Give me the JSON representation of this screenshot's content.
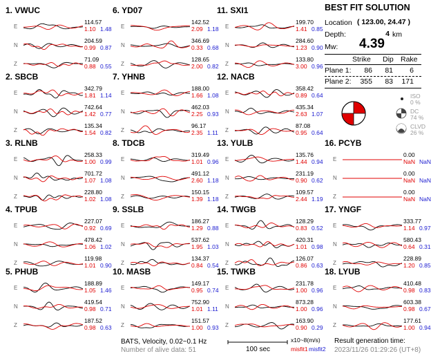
{
  "stations": [
    {
      "label": "1. VWUC",
      "traces": [
        {
          "comp": "E",
          "amp": "114.57",
          "misfit1": "1.10",
          "misfit2": "1.48"
        },
        {
          "comp": "N",
          "amp": "204.59",
          "misfit1": "0.99",
          "misfit2": "0.87"
        },
        {
          "comp": "Z",
          "amp": "71.09",
          "misfit1": "0.88",
          "misfit2": "0.55"
        }
      ]
    },
    {
      "label": "2. SBCB",
      "traces": [
        {
          "comp": "E",
          "amp": "342.79",
          "misfit1": "1.81",
          "misfit2": "1.14"
        },
        {
          "comp": "N",
          "amp": "742.64",
          "misfit1": "1.42",
          "misfit2": "0.77"
        },
        {
          "comp": "Z",
          "amp": "135.34",
          "misfit1": "1.54",
          "misfit2": "0.82"
        }
      ]
    },
    {
      "label": "3. RLNB",
      "traces": [
        {
          "comp": "E",
          "amp": "258.33",
          "misfit1": "1.00",
          "misfit2": "0.99"
        },
        {
          "comp": "N",
          "amp": "701.72",
          "misfit1": "1.07",
          "misfit2": "1.08"
        },
        {
          "comp": "Z",
          "amp": "228.80",
          "misfit1": "1.02",
          "misfit2": "1.08"
        }
      ]
    },
    {
      "label": "4. TPUB",
      "traces": [
        {
          "comp": "E",
          "amp": "227.07",
          "misfit1": "0.92",
          "misfit2": "0.69"
        },
        {
          "comp": "N",
          "amp": "478.42",
          "misfit1": "1.06",
          "misfit2": "1.02"
        },
        {
          "comp": "Z",
          "amp": "119.98",
          "misfit1": "1.01",
          "misfit2": "0.90"
        }
      ]
    },
    {
      "label": "5. PHUB",
      "traces": [
        {
          "comp": "E",
          "amp": "188.89",
          "misfit1": "1.05",
          "misfit2": "1.46"
        },
        {
          "comp": "N",
          "amp": "419.54",
          "misfit1": "0.98",
          "misfit2": "0.71"
        },
        {
          "comp": "Z",
          "amp": "187.52",
          "misfit1": "0.98",
          "misfit2": "0.63"
        }
      ]
    },
    {
      "label": "6. YD07",
      "traces": [
        {
          "comp": "E",
          "amp": "142.52",
          "misfit1": "2.09",
          "misfit2": "1.18"
        },
        {
          "comp": "N",
          "amp": "346.69",
          "misfit1": "0.33",
          "misfit2": "0.68"
        },
        {
          "comp": "Z",
          "amp": "128.65",
          "misfit1": "2.00",
          "misfit2": "0.82"
        }
      ]
    },
    {
      "label": "7. YHNB",
      "traces": [
        {
          "comp": "E",
          "amp": "188.00",
          "misfit1": "1.66",
          "misfit2": "1.08"
        },
        {
          "comp": "N",
          "amp": "462.03",
          "misfit1": "2.25",
          "misfit2": "0.93"
        },
        {
          "comp": "Z",
          "amp": "96.17",
          "misfit1": "2.35",
          "misfit2": "1.11"
        }
      ]
    },
    {
      "label": "8. TDCB",
      "traces": [
        {
          "comp": "E",
          "amp": "319.49",
          "misfit1": "1.01",
          "misfit2": "0.96"
        },
        {
          "comp": "N",
          "amp": "491.12",
          "misfit1": "2.60",
          "misfit2": "1.18"
        },
        {
          "comp": "Z",
          "amp": "150.15",
          "misfit1": "1.39",
          "misfit2": "1.18"
        }
      ]
    },
    {
      "label": "9. SSLB",
      "traces": [
        {
          "comp": "E",
          "amp": "186.27",
          "misfit1": "1.29",
          "misfit2": "0.88"
        },
        {
          "comp": "N",
          "amp": "537.62",
          "misfit1": "1.95",
          "misfit2": "1.03"
        },
        {
          "comp": "Z",
          "amp": "134.37",
          "misfit1": "0.84",
          "misfit2": "0.54"
        }
      ]
    },
    {
      "label": "10. MASB",
      "traces": [
        {
          "comp": "E",
          "amp": "149.17",
          "misfit1": "0.95",
          "misfit2": "0.74"
        },
        {
          "comp": "N",
          "amp": "752.90",
          "misfit1": "1.01",
          "misfit2": "1.11"
        },
        {
          "comp": "Z",
          "amp": "151.57",
          "misfit1": "1.00",
          "misfit2": "0.93"
        }
      ]
    },
    {
      "label": "11. SXI1",
      "traces": [
        {
          "comp": "E",
          "amp": "199.70",
          "misfit1": "1.41",
          "misfit2": "0.85"
        },
        {
          "comp": "N",
          "amp": "284.60",
          "misfit1": "1.23",
          "misfit2": "0.90"
        },
        {
          "comp": "Z",
          "amp": "133.80",
          "misfit1": "3.00",
          "misfit2": "0.96"
        }
      ]
    },
    {
      "label": "12. NACB",
      "traces": [
        {
          "comp": "E",
          "amp": "358.42",
          "misfit1": "0.89",
          "misfit2": "0.64"
        },
        {
          "comp": "N",
          "amp": "435.34",
          "misfit1": "2.63",
          "misfit2": "1.07"
        },
        {
          "comp": "Z",
          "amp": "87.08",
          "misfit1": "0.95",
          "misfit2": "0.64"
        }
      ]
    },
    {
      "label": "13. YULB",
      "traces": [
        {
          "comp": "E",
          "amp": "135.76",
          "misfit1": "1.44",
          "misfit2": "0.94"
        },
        {
          "comp": "N",
          "amp": "231.19",
          "misfit1": "0.90",
          "misfit2": "0.62"
        },
        {
          "comp": "Z",
          "amp": "109.57",
          "misfit1": "2.44",
          "misfit2": "1.19"
        }
      ]
    },
    {
      "label": "14. TWGB",
      "traces": [
        {
          "comp": "E",
          "amp": "128.29",
          "misfit1": "0.83",
          "misfit2": "0.52"
        },
        {
          "comp": "N",
          "amp": "420.31",
          "misfit1": "1.01",
          "misfit2": "0.98"
        },
        {
          "comp": "Z",
          "amp": "126.07",
          "misfit1": "0.86",
          "misfit2": "0.63"
        }
      ]
    },
    {
      "label": "15. TWKB",
      "traces": [
        {
          "comp": "E",
          "amp": "231.78",
          "misfit1": "1.00",
          "misfit2": "0.96"
        },
        {
          "comp": "N",
          "amp": "873.28",
          "misfit1": "1.00",
          "misfit2": "0.96"
        },
        {
          "comp": "Z",
          "amp": "163.90",
          "misfit1": "0.90",
          "misfit2": "0.29"
        }
      ]
    },
    {
      "label": "16. PCYB",
      "traces": [
        {
          "comp": "E",
          "amp": "0.00",
          "misfit1": "NaN",
          "misfit2": "NaN"
        },
        {
          "comp": "N",
          "amp": "0.00",
          "misfit1": "NaN",
          "misfit2": "NaN"
        },
        {
          "comp": "Z",
          "amp": "0.00",
          "misfit1": "NaN",
          "misfit2": "NaN"
        }
      ]
    },
    {
      "label": "17. YNGF",
      "traces": [
        {
          "comp": "E",
          "amp": "333.77",
          "misfit1": "1.14",
          "misfit2": "0.97"
        },
        {
          "comp": "N",
          "amp": "580.43",
          "misfit1": "0.64",
          "misfit2": "0.31"
        },
        {
          "comp": "Z",
          "amp": "228.89",
          "misfit1": "1.20",
          "misfit2": "0.85"
        }
      ]
    },
    {
      "label": "18. LYUB",
      "traces": [
        {
          "comp": "E",
          "amp": "410.48",
          "misfit1": "0.98",
          "misfit2": "0.83"
        },
        {
          "comp": "N",
          "amp": "603.38",
          "misfit1": "0.98",
          "misfit2": "0.67"
        },
        {
          "comp": "Z",
          "amp": "177.61",
          "misfit1": "1.00",
          "misfit2": "0.94"
        }
      ]
    }
  ],
  "solution": {
    "title": "BEST FIT SOLUTION",
    "location_label": "Location",
    "location_value": "( 123.00, 24.47 )",
    "depth_label": "Depth:",
    "depth_value": "4",
    "depth_unit": "km",
    "mw_label": "Mw:",
    "mw_value": "4.39",
    "headers": [
      "Strike",
      "Dip",
      "Rake"
    ],
    "planes": [
      {
        "label": "Plane 1:",
        "strike": "86",
        "dip": "81",
        "rake": "6"
      },
      {
        "label": "Plane 2:",
        "strike": "355",
        "dip": "83",
        "rake": "171"
      }
    ],
    "components": [
      {
        "label": "ISO",
        "percent": "0 %"
      },
      {
        "label": "DC",
        "percent": "74 %"
      },
      {
        "label": "CLVD",
        "percent": "26 %"
      }
    ]
  },
  "footer": {
    "network": "BATS, Velocity, 0.02~0.1 Hz",
    "alive": "Number of alive data: 51",
    "scale_label": "100 sec",
    "units": "x10~8(m/s)",
    "misfit1": "misfit1",
    "misfit2": "misfit2",
    "result_label": "Result generation time:",
    "result_time": "2023/11/26 01:29:26 (UT+8)"
  },
  "colors": {
    "observed": "#000000",
    "synthetic": "#e00000",
    "misfit1": "#e00000",
    "misfit2": "#1a1ad0"
  }
}
